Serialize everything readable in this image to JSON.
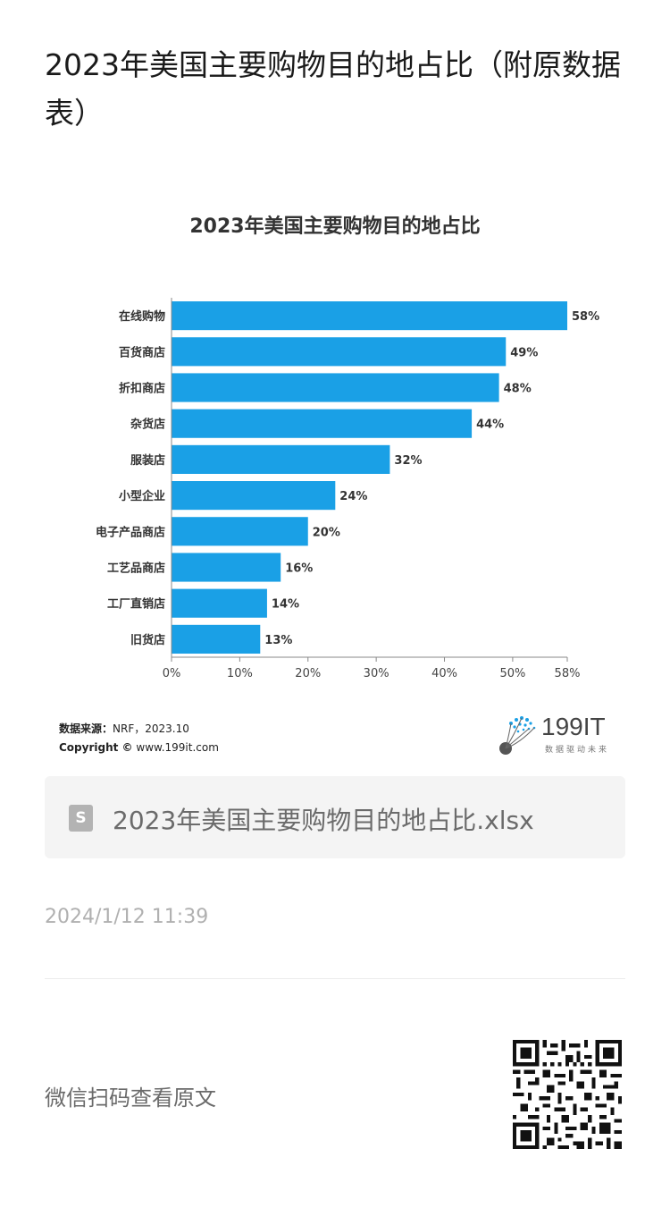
{
  "article": {
    "title": "2023年美国主要购物目的地占比（附原数据表）"
  },
  "chart_data": {
    "type": "bar",
    "orientation": "horizontal",
    "title": "2023年美国主要购物目的地占比",
    "categories": [
      "在线购物",
      "百货商店",
      "折扣商店",
      "杂货店",
      "服装店",
      "小型企业",
      "电子产品商店",
      "工艺品商店",
      "工厂直销店",
      "旧货店"
    ],
    "values": [
      58,
      49,
      48,
      44,
      32,
      24,
      20,
      16,
      14,
      13
    ],
    "value_labels": [
      "58%",
      "49%",
      "48%",
      "44%",
      "32%",
      "24%",
      "20%",
      "16%",
      "14%",
      "13%"
    ],
    "xticks": [
      0,
      10,
      20,
      30,
      40,
      50,
      58
    ],
    "xtick_labels": [
      "0%",
      "10%",
      "20%",
      "30%",
      "40%",
      "50%",
      "58%"
    ],
    "xlim": [
      0,
      58
    ],
    "grid": false,
    "bar_color": "#1aa0e6"
  },
  "figure": {
    "source_label": "数据来源：",
    "source_value": "NRF，2023.10",
    "copyright_label": "Copyright ©",
    "copyright_value": "www.199it.com",
    "logo_text": "199IT",
    "logo_slogan": "数据驱动未来"
  },
  "attachment": {
    "file_name": "2023年美国主要购物目的地占比.xlsx",
    "icon_letter": "S"
  },
  "meta": {
    "timestamp": "2024/1/12 11:39",
    "wechat_prompt": "微信扫码查看原文"
  }
}
